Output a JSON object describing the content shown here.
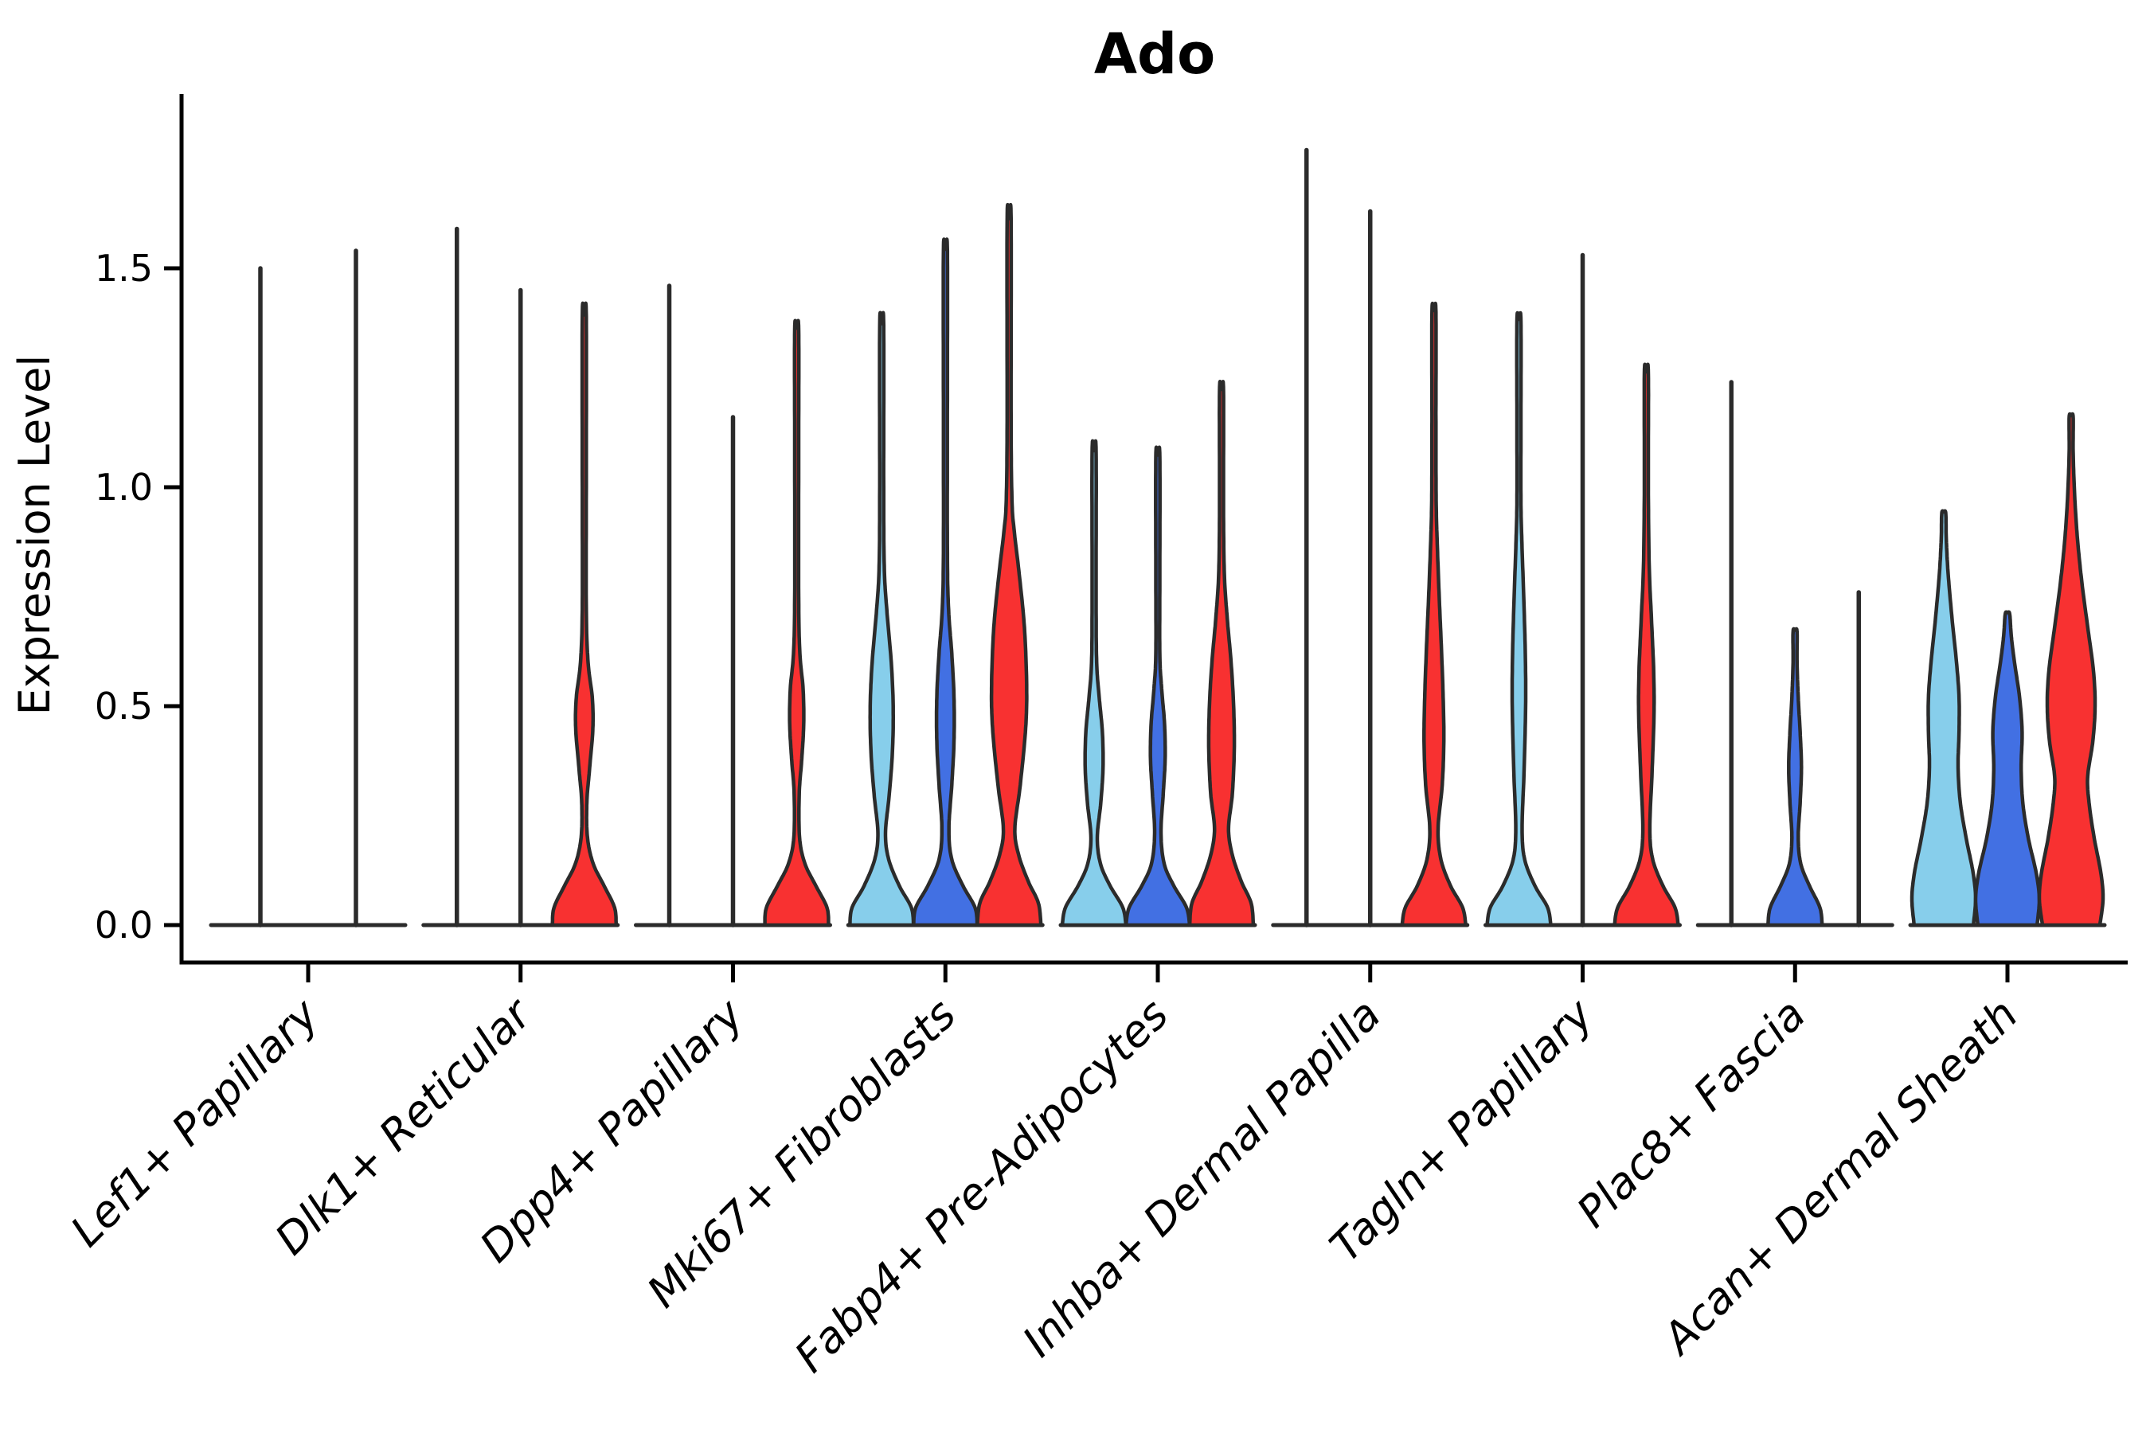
{
  "chart_data": {
    "type": "violin",
    "title": "Ado",
    "ylabel": "Expression Level",
    "xlabel": "",
    "ylim": [
      0,
      1.9
    ],
    "yticks": [
      {
        "value": 0.0,
        "label": "0.0"
      },
      {
        "value": 0.5,
        "label": "0.5"
      },
      {
        "value": 1.0,
        "label": "1.0"
      },
      {
        "value": 1.5,
        "label": "1.5"
      }
    ],
    "grid": false,
    "legend": "none",
    "series_colors": [
      "#87CEEB",
      "#4270E3",
      "#F83131"
    ],
    "outline_color": "#2B2B2B",
    "axis_color": "#000000",
    "categories": [
      "Lef1+ Papillary",
      "Dlk1+ Reticular",
      "Dpp4+ Papillary",
      "Mki67+ Fibroblasts",
      "Fabp4+ Pre-Adipocytes",
      "Inhba+ Dermal Papilla",
      "Tagln+ Papillary",
      "Plac8+ Fascia",
      "Acan+ Dermal Sheath"
    ],
    "groups": [
      {
        "label": "Lef1+ Papillary",
        "violins": [
          {
            "series": 0,
            "type": "spike",
            "max": 1.5
          },
          {
            "series": 1,
            "type": "spike",
            "max": 1.54
          }
        ]
      },
      {
        "label": "Dlk1+ Reticular",
        "violins": [
          {
            "series": 0,
            "type": "spike",
            "max": 1.59
          },
          {
            "series": 1,
            "type": "spike",
            "max": 1.45
          },
          {
            "series": 2,
            "type": "violin",
            "max": 1.39,
            "profile": [
              [
                0,
                1
              ],
              [
                0.04,
                0.95
              ],
              [
                0.09,
                0.62
              ],
              [
                0.14,
                0.28
              ],
              [
                0.2,
                0.1
              ],
              [
                0.28,
                0.08
              ],
              [
                0.36,
                0.17
              ],
              [
                0.45,
                0.27
              ],
              [
                0.52,
                0.25
              ],
              [
                0.6,
                0.12
              ],
              [
                0.72,
                0.06
              ],
              [
                1.0,
                0.05
              ],
              [
                1.39,
                0.04
              ]
            ]
          }
        ]
      },
      {
        "label": "Dpp4+ Papillary",
        "violins": [
          {
            "series": 0,
            "type": "spike",
            "max": 1.46
          },
          {
            "series": 1,
            "type": "spike",
            "max": 1.16
          },
          {
            "series": 2,
            "type": "violin",
            "max": 1.36,
            "profile": [
              [
                0,
                1
              ],
              [
                0.04,
                0.95
              ],
              [
                0.09,
                0.6
              ],
              [
                0.14,
                0.26
              ],
              [
                0.2,
                0.09
              ],
              [
                0.3,
                0.08
              ],
              [
                0.38,
                0.16
              ],
              [
                0.46,
                0.22
              ],
              [
                0.54,
                0.2
              ],
              [
                0.62,
                0.1
              ],
              [
                0.75,
                0.05
              ],
              [
                1.1,
                0.045
              ],
              [
                1.36,
                0.04
              ]
            ]
          }
        ]
      },
      {
        "label": "Mki67+ Fibroblasts",
        "violins": [
          {
            "series": 0,
            "type": "violin",
            "max": 1.37,
            "profile": [
              [
                0,
                1
              ],
              [
                0.04,
                0.93
              ],
              [
                0.09,
                0.55
              ],
              [
                0.15,
                0.22
              ],
              [
                0.21,
                0.12
              ],
              [
                0.3,
                0.24
              ],
              [
                0.4,
                0.34
              ],
              [
                0.5,
                0.36
              ],
              [
                0.6,
                0.3
              ],
              [
                0.72,
                0.16
              ],
              [
                0.82,
                0.08
              ],
              [
                1.0,
                0.05
              ],
              [
                1.37,
                0.04
              ]
            ]
          },
          {
            "series": 1,
            "type": "violin",
            "max": 1.54,
            "profile": [
              [
                0,
                1
              ],
              [
                0.04,
                0.93
              ],
              [
                0.09,
                0.55
              ],
              [
                0.15,
                0.2
              ],
              [
                0.22,
                0.11
              ],
              [
                0.32,
                0.2
              ],
              [
                0.42,
                0.27
              ],
              [
                0.52,
                0.27
              ],
              [
                0.62,
                0.2
              ],
              [
                0.72,
                0.1
              ],
              [
                0.85,
                0.05
              ],
              [
                1.2,
                0.045
              ],
              [
                1.54,
                0.04
              ]
            ]
          },
          {
            "series": 2,
            "type": "violin",
            "max": 1.61,
            "profile": [
              [
                0,
                1
              ],
              [
                0.05,
                0.92
              ],
              [
                0.1,
                0.6
              ],
              [
                0.16,
                0.3
              ],
              [
                0.22,
                0.18
              ],
              [
                0.32,
                0.35
              ],
              [
                0.45,
                0.52
              ],
              [
                0.55,
                0.55
              ],
              [
                0.68,
                0.48
              ],
              [
                0.8,
                0.32
              ],
              [
                0.9,
                0.16
              ],
              [
                0.97,
                0.09
              ],
              [
                1.15,
                0.05
              ],
              [
                1.61,
                0.04
              ]
            ]
          }
        ]
      },
      {
        "label": "Fabp4+ Pre-Adipocytes",
        "violins": [
          {
            "series": 0,
            "type": "violin",
            "max": 1.08,
            "profile": [
              [
                0,
                1
              ],
              [
                0.04,
                0.9
              ],
              [
                0.09,
                0.5
              ],
              [
                0.14,
                0.2
              ],
              [
                0.2,
                0.1
              ],
              [
                0.28,
                0.21
              ],
              [
                0.36,
                0.28
              ],
              [
                0.44,
                0.26
              ],
              [
                0.52,
                0.16
              ],
              [
                0.6,
                0.08
              ],
              [
                0.75,
                0.05
              ],
              [
                1.08,
                0.04
              ]
            ]
          },
          {
            "series": 1,
            "type": "violin",
            "max": 1.07,
            "profile": [
              [
                0,
                1
              ],
              [
                0.04,
                0.9
              ],
              [
                0.09,
                0.5
              ],
              [
                0.14,
                0.2
              ],
              [
                0.21,
                0.1
              ],
              [
                0.3,
                0.17
              ],
              [
                0.38,
                0.23
              ],
              [
                0.46,
                0.21
              ],
              [
                0.54,
                0.12
              ],
              [
                0.62,
                0.06
              ],
              [
                0.8,
                0.045
              ],
              [
                1.07,
                0.04
              ]
            ]
          },
          {
            "series": 2,
            "type": "violin",
            "max": 1.22,
            "profile": [
              [
                0,
                1
              ],
              [
                0.05,
                0.93
              ],
              [
                0.1,
                0.62
              ],
              [
                0.16,
                0.34
              ],
              [
                0.22,
                0.22
              ],
              [
                0.3,
                0.34
              ],
              [
                0.4,
                0.4
              ],
              [
                0.5,
                0.38
              ],
              [
                0.6,
                0.3
              ],
              [
                0.7,
                0.18
              ],
              [
                0.8,
                0.09
              ],
              [
                0.95,
                0.05
              ],
              [
                1.22,
                0.04
              ]
            ]
          }
        ]
      },
      {
        "label": "Inhba+ Dermal Papilla",
        "violins": [
          {
            "series": 0,
            "type": "spike",
            "max": 1.77
          },
          {
            "series": 1,
            "type": "spike",
            "max": 1.63
          },
          {
            "series": 2,
            "type": "violin",
            "max": 1.4,
            "profile": [
              [
                0,
                1
              ],
              [
                0.04,
                0.9
              ],
              [
                0.09,
                0.52
              ],
              [
                0.15,
                0.22
              ],
              [
                0.22,
                0.13
              ],
              [
                0.32,
                0.26
              ],
              [
                0.42,
                0.31
              ],
              [
                0.52,
                0.29
              ],
              [
                0.64,
                0.23
              ],
              [
                0.76,
                0.16
              ],
              [
                0.88,
                0.1
              ],
              [
                0.97,
                0.07
              ],
              [
                1.15,
                0.05
              ],
              [
                1.4,
                0.04
              ]
            ]
          }
        ]
      },
      {
        "label": "Tagln+ Papillary",
        "violins": [
          {
            "series": 0,
            "type": "violin",
            "max": 1.38,
            "profile": [
              [
                0,
                1
              ],
              [
                0.04,
                0.9
              ],
              [
                0.09,
                0.5
              ],
              [
                0.15,
                0.18
              ],
              [
                0.22,
                0.1
              ],
              [
                0.35,
                0.16
              ],
              [
                0.5,
                0.21
              ],
              [
                0.62,
                0.2
              ],
              [
                0.75,
                0.15
              ],
              [
                0.88,
                0.09
              ],
              [
                0.97,
                0.06
              ],
              [
                1.15,
                0.045
              ],
              [
                1.38,
                0.04
              ]
            ]
          },
          {
            "series": 1,
            "type": "spike",
            "max": 1.53
          },
          {
            "series": 2,
            "type": "violin",
            "max": 1.26,
            "profile": [
              [
                0,
                1
              ],
              [
                0.04,
                0.9
              ],
              [
                0.09,
                0.52
              ],
              [
                0.15,
                0.2
              ],
              [
                0.22,
                0.11
              ],
              [
                0.35,
                0.18
              ],
              [
                0.48,
                0.24
              ],
              [
                0.58,
                0.23
              ],
              [
                0.7,
                0.16
              ],
              [
                0.82,
                0.09
              ],
              [
                1.0,
                0.05
              ],
              [
                1.26,
                0.04
              ]
            ]
          }
        ]
      },
      {
        "label": "Plac8+ Fascia",
        "violins": [
          {
            "series": 0,
            "type": "spike",
            "max": 1.24
          },
          {
            "series": 1,
            "type": "violin",
            "max": 0.67,
            "profile": [
              [
                0,
                0.85
              ],
              [
                0.04,
                0.78
              ],
              [
                0.09,
                0.45
              ],
              [
                0.14,
                0.18
              ],
              [
                0.2,
                0.1
              ],
              [
                0.28,
                0.16
              ],
              [
                0.36,
                0.2
              ],
              [
                0.44,
                0.16
              ],
              [
                0.52,
                0.1
              ],
              [
                0.6,
                0.06
              ],
              [
                0.67,
                0.05
              ]
            ]
          },
          {
            "series": 2,
            "type": "spike",
            "max": 0.76
          }
        ]
      },
      {
        "label": "Acan+ Dermal Sheath",
        "violins": [
          {
            "series": 0,
            "type": "violin",
            "max": 0.94,
            "profile": [
              [
                0,
                0.93
              ],
              [
                0.06,
                1.0
              ],
              [
                0.12,
                0.92
              ],
              [
                0.2,
                0.7
              ],
              [
                0.28,
                0.52
              ],
              [
                0.36,
                0.45
              ],
              [
                0.44,
                0.48
              ],
              [
                0.52,
                0.48
              ],
              [
                0.6,
                0.4
              ],
              [
                0.7,
                0.26
              ],
              [
                0.8,
                0.14
              ],
              [
                0.88,
                0.08
              ],
              [
                0.94,
                0.06
              ]
            ]
          },
          {
            "series": 1,
            "type": "violin",
            "max": 0.71,
            "profile": [
              [
                0,
                0.93
              ],
              [
                0.06,
                1.0
              ],
              [
                0.12,
                0.9
              ],
              [
                0.2,
                0.65
              ],
              [
                0.28,
                0.48
              ],
              [
                0.36,
                0.43
              ],
              [
                0.44,
                0.46
              ],
              [
                0.52,
                0.38
              ],
              [
                0.6,
                0.22
              ],
              [
                0.66,
                0.12
              ],
              [
                0.71,
                0.07
              ]
            ]
          },
          {
            "series": 2,
            "type": "violin",
            "max": 1.16,
            "profile": [
              [
                0,
                0.9
              ],
              [
                0.06,
                1.0
              ],
              [
                0.12,
                0.93
              ],
              [
                0.2,
                0.72
              ],
              [
                0.28,
                0.56
              ],
              [
                0.34,
                0.52
              ],
              [
                0.42,
                0.68
              ],
              [
                0.5,
                0.75
              ],
              [
                0.58,
                0.7
              ],
              [
                0.68,
                0.52
              ],
              [
                0.78,
                0.34
              ],
              [
                0.88,
                0.2
              ],
              [
                0.98,
                0.11
              ],
              [
                1.08,
                0.06
              ],
              [
                1.16,
                0.05
              ]
            ]
          }
        ]
      }
    ]
  }
}
